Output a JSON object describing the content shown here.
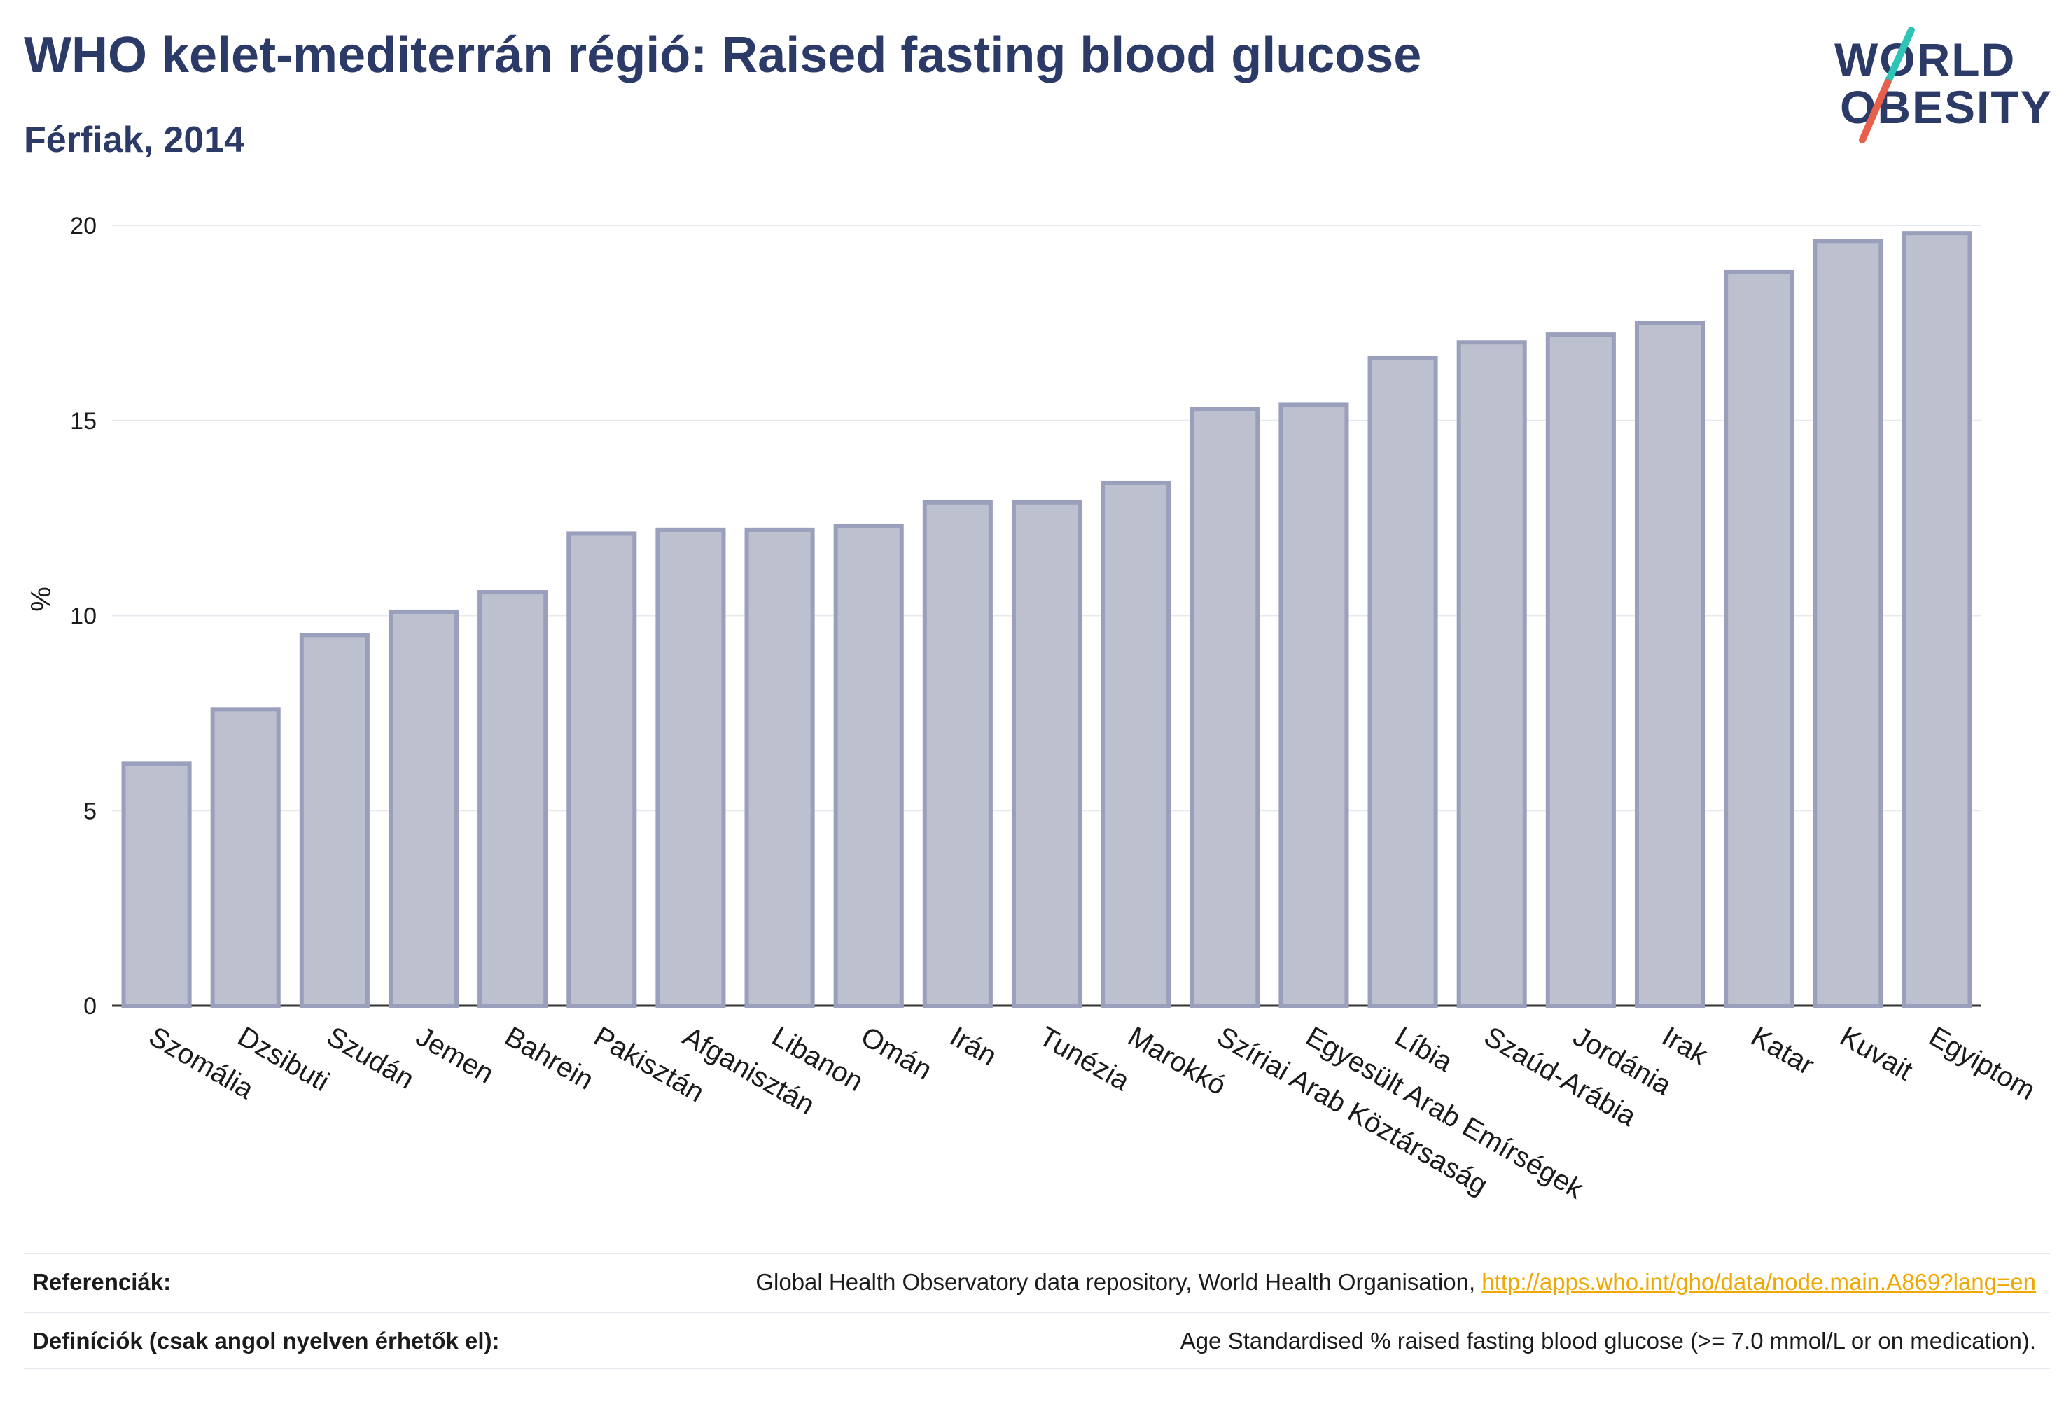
{
  "header": {
    "title": "WHO kelet-mediterrán régió: Raised fasting blood glucose",
    "subtitle": "Férfiak, 2014"
  },
  "logo": {
    "line1": "WORLD",
    "line2": "OBESITY",
    "colors": {
      "text": "#2b3a67",
      "slash_top": "#2ec4b6",
      "slash_bottom": "#e8604c"
    }
  },
  "colors": {
    "bar_fill": "#bdc0cf",
    "bar_stroke": "#9aa0bb",
    "grid": "#e6e8f0",
    "axis": "#333333"
  },
  "chart_data": {
    "type": "bar",
    "categories": [
      "Szomália",
      "Dzsibuti",
      "Szudán",
      "Jemen",
      "Bahrein",
      "Pakisztán",
      "Afganisztán",
      "Libanon",
      "Omán",
      "Irán",
      "Tunézia",
      "Marokkó",
      "Szíriai Arab Köztársaság",
      "Egyesült Arab Emírségek",
      "Líbia",
      "Szaúd-Arábia",
      "Jordánia",
      "Irak",
      "Katar",
      "Kuvait",
      "Egyiptom"
    ],
    "values": [
      6.2,
      7.6,
      9.5,
      10.1,
      10.6,
      12.1,
      12.2,
      12.2,
      12.3,
      12.9,
      12.9,
      13.4,
      15.3,
      15.4,
      16.6,
      17.0,
      17.2,
      17.5,
      18.8,
      19.6,
      19.8
    ],
    "ylabel": "%",
    "ylim": [
      0,
      20
    ],
    "yticks": [
      0,
      5,
      10,
      15,
      20
    ],
    "grid": true
  },
  "footer": {
    "references_label": "Referenciák:",
    "references_text": "Global Health Observatory data repository, World Health Organisation, ",
    "references_link": "http://apps.who.int/gho/data/node.main.A869?lang=en",
    "definitions_label": "Definíciók (csak angol nyelven érhetők el):",
    "definitions_text": "Age Standardised % raised fasting blood glucose (>= 7.0 mmol/L or on medication)."
  }
}
